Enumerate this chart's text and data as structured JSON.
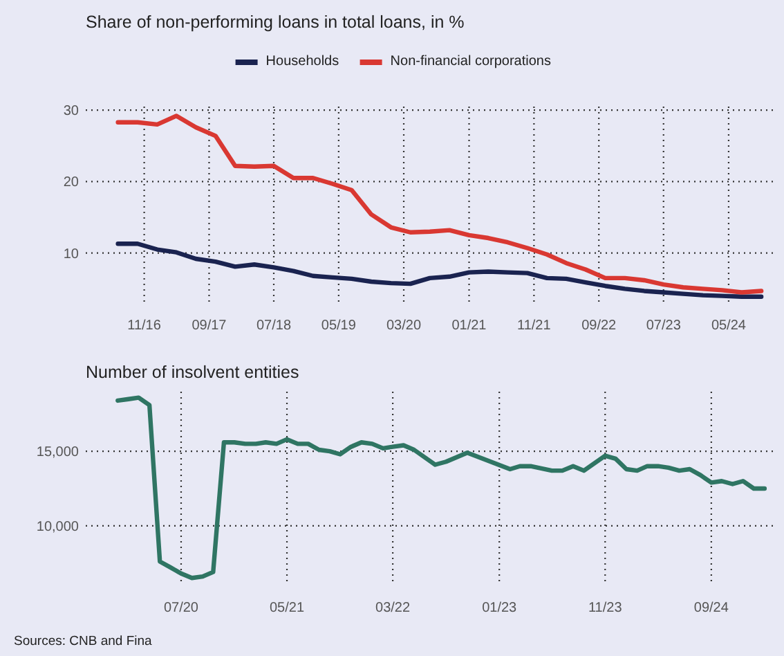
{
  "chart_data": [
    {
      "type": "line",
      "title": "Share of non-performing loans in total loans, in %",
      "legend": "top",
      "grid": true,
      "x": [
        "2016-07",
        "2016-10",
        "2017-01",
        "2017-04",
        "2017-07",
        "2017-10",
        "2018-01",
        "2018-04",
        "2018-07",
        "2018-10",
        "2019-01",
        "2019-04",
        "2019-07",
        "2019-10",
        "2020-01",
        "2020-04",
        "2020-07",
        "2020-10",
        "2021-01",
        "2021-04",
        "2021-07",
        "2021-10",
        "2022-01",
        "2022-04",
        "2022-07",
        "2022-10",
        "2023-01",
        "2023-04",
        "2023-07",
        "2023-10",
        "2024-01",
        "2024-04",
        "2024-07",
        "2024-10"
      ],
      "series": [
        {
          "name": "Households",
          "color": "#1a2350",
          "values": [
            11.3,
            11.3,
            10.5,
            10.1,
            9.2,
            8.8,
            8.1,
            8.4,
            8.0,
            7.5,
            6.8,
            6.6,
            6.4,
            6.0,
            5.8,
            5.7,
            6.5,
            6.7,
            7.3,
            7.4,
            7.3,
            7.2,
            6.5,
            6.4,
            5.9,
            5.4,
            5.0,
            4.7,
            4.5,
            4.3,
            4.1,
            4.0,
            3.9,
            3.9
          ]
        },
        {
          "name": "Non-financial corporations",
          "color": "#d93832",
          "values": [
            28.3,
            28.3,
            28.0,
            29.2,
            27.6,
            26.4,
            22.2,
            22.1,
            22.2,
            20.5,
            20.5,
            19.7,
            18.8,
            15.4,
            13.6,
            12.9,
            13.0,
            13.2,
            12.5,
            12.1,
            11.5,
            10.7,
            9.8,
            8.6,
            7.7,
            6.5,
            6.5,
            6.2,
            5.6,
            5.2,
            5.0,
            4.8,
            4.5,
            4.7
          ]
        }
      ],
      "xlim": [
        "2016-02",
        "2024-12"
      ],
      "xticks": [
        {
          "value": "2016-11",
          "label": "11/16"
        },
        {
          "value": "2017-09",
          "label": "09/17"
        },
        {
          "value": "2018-07",
          "label": "07/18"
        },
        {
          "value": "2019-05",
          "label": "05/19"
        },
        {
          "value": "2020-03",
          "label": "03/20"
        },
        {
          "value": "2021-01",
          "label": "01/21"
        },
        {
          "value": "2021-11",
          "label": "11/21"
        },
        {
          "value": "2022-09",
          "label": "09/22"
        },
        {
          "value": "2023-07",
          "label": "07/23"
        },
        {
          "value": "2024-05",
          "label": "05/24"
        }
      ],
      "ylim": [
        3,
        30.5
      ],
      "yticks": [
        10,
        20,
        30
      ]
    },
    {
      "type": "line",
      "title": "Number of insolvent entities",
      "grid": true,
      "series": [
        {
          "color": "#2f7563",
          "x": [
            "2020-01",
            "2020-02",
            "2020-03",
            "2020-04",
            "2020-05",
            "2020-06",
            "2020-07",
            "2020-08",
            "2020-09",
            "2020-10",
            "2020-11",
            "2020-12",
            "2021-01",
            "2021-02",
            "2021-03",
            "2021-04",
            "2021-05",
            "2021-06",
            "2021-07",
            "2021-08",
            "2021-09",
            "2021-10",
            "2021-11",
            "2021-12",
            "2022-01",
            "2022-02",
            "2022-03",
            "2022-04",
            "2022-05",
            "2022-07",
            "2022-08",
            "2022-10",
            "2023-02",
            "2023-03",
            "2023-04",
            "2023-06",
            "2023-07",
            "2023-08",
            "2023-09",
            "2023-11",
            "2023-12",
            "2024-01",
            "2024-02",
            "2024-03",
            "2024-04",
            "2024-05",
            "2024-06",
            "2024-07",
            "2024-08",
            "2024-09",
            "2024-10",
            "2024-11",
            "2024-12",
            "2025-01",
            "2025-02"
          ],
          "values": [
            18400,
            18500,
            18600,
            18100,
            7600,
            7200,
            6800,
            6500,
            6600,
            6900,
            15600,
            15600,
            15500,
            15500,
            15600,
            15500,
            15800,
            15500,
            15500,
            15100,
            15000,
            14800,
            15300,
            15600,
            15500,
            15200,
            15300,
            15400,
            15100,
            14100,
            14300,
            14900,
            13800,
            14000,
            14000,
            13700,
            13700,
            14000,
            13700,
            14700,
            14500,
            13800,
            13700,
            14000,
            14000,
            13900,
            13700,
            13800,
            13400,
            12900,
            13000,
            12800,
            13000,
            12500,
            12500
          ]
        }
      ],
      "xlim": [
        "2019-10",
        "2025-03"
      ],
      "xticks": [
        {
          "value": "2020-07",
          "label": "07/20"
        },
        {
          "value": "2021-05",
          "label": "05/21"
        },
        {
          "value": "2022-03",
          "label": "03/22"
        },
        {
          "value": "2023-01",
          "label": "01/23"
        },
        {
          "value": "2023-11",
          "label": "11/23"
        },
        {
          "value": "2024-09",
          "label": "09/24"
        }
      ],
      "ylim": [
        6000,
        19000
      ],
      "yticks": [
        {
          "value": 10000,
          "label": "10,000"
        },
        {
          "value": 15000,
          "label": "15,000"
        }
      ],
      "annotations": [
        "Sources: CNB and Fina"
      ]
    }
  ]
}
